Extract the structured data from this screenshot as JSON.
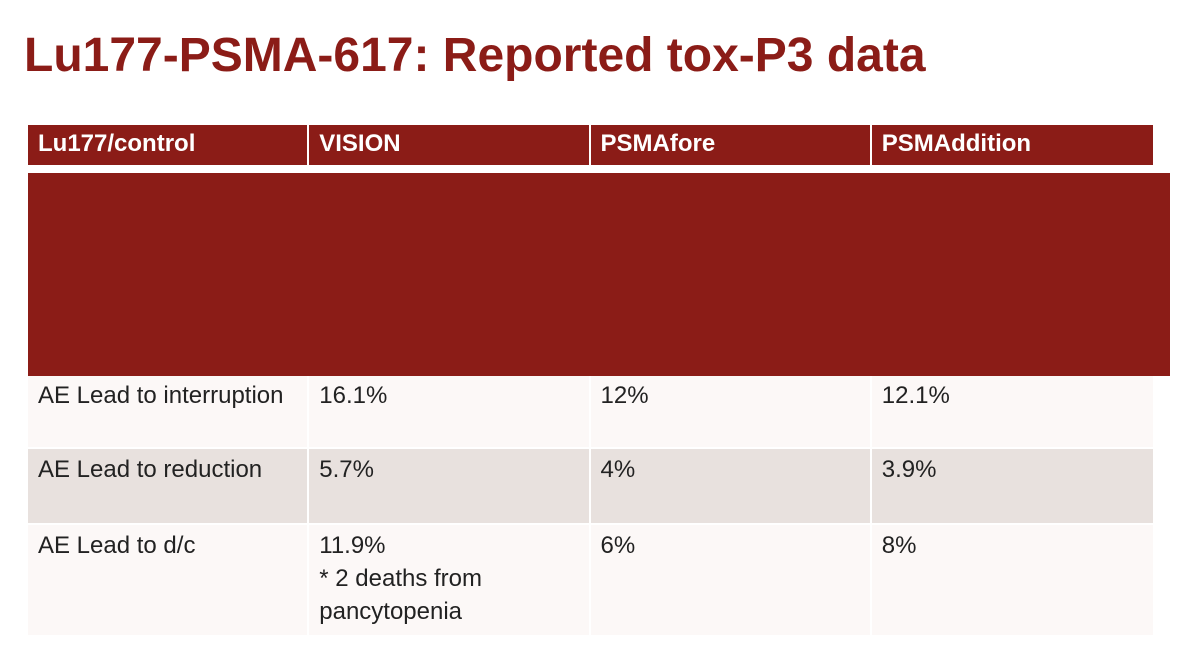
{
  "header": {
    "title": "Lu177-PSMA-617: Reported tox-P3 data"
  },
  "table": {
    "columns": [
      "Lu177/control",
      "VISION",
      "PSMAfore",
      "PSMAddition"
    ],
    "rows": [
      [
        "AE Lead to interruption",
        "16.1%",
        "12%",
        "12.1%"
      ],
      [
        "AE Lead to reduction",
        "5.7%",
        "4%",
        "3.9%"
      ],
      [
        "AE Lead to d/c",
        "11.9%\n* 2 deaths from pancytopenia",
        "6%",
        "8%"
      ]
    ]
  }
}
